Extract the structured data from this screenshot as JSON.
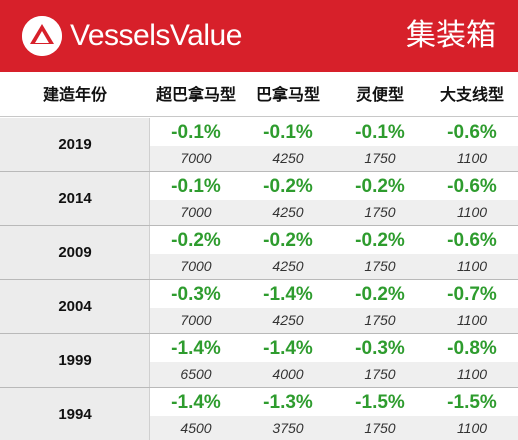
{
  "header": {
    "brand": "VesselsValue",
    "category": "集装箱",
    "logo_icon": "vesselsvalue-logo-icon",
    "brand_color": "#d7202a"
  },
  "table": {
    "columns": [
      "建造年份",
      "超巴拿马型",
      "巴拿马型",
      "灵便型",
      "大支线型"
    ],
    "positive_color": "#2e9c2e",
    "rows": [
      {
        "year": "2019",
        "cells": [
          {
            "pct": "-0.1%",
            "price": "7000"
          },
          {
            "pct": "-0.1%",
            "price": "4250"
          },
          {
            "pct": "-0.1%",
            "price": "1750"
          },
          {
            "pct": "-0.6%",
            "price": "1100"
          }
        ]
      },
      {
        "year": "2014",
        "cells": [
          {
            "pct": "-0.1%",
            "price": "7000"
          },
          {
            "pct": "-0.2%",
            "price": "4250"
          },
          {
            "pct": "-0.2%",
            "price": "1750"
          },
          {
            "pct": "-0.6%",
            "price": "1100"
          }
        ]
      },
      {
        "year": "2009",
        "cells": [
          {
            "pct": "-0.2%",
            "price": "7000"
          },
          {
            "pct": "-0.2%",
            "price": "4250"
          },
          {
            "pct": "-0.2%",
            "price": "1750"
          },
          {
            "pct": "-0.6%",
            "price": "1100"
          }
        ]
      },
      {
        "year": "2004",
        "cells": [
          {
            "pct": "-0.3%",
            "price": "7000"
          },
          {
            "pct": "-1.4%",
            "price": "4250"
          },
          {
            "pct": "-0.2%",
            "price": "1750"
          },
          {
            "pct": "-0.7%",
            "price": "1100"
          }
        ]
      },
      {
        "year": "1999",
        "cells": [
          {
            "pct": "-1.4%",
            "price": "6500"
          },
          {
            "pct": "-1.4%",
            "price": "4000"
          },
          {
            "pct": "-0.3%",
            "price": "1750"
          },
          {
            "pct": "-0.8%",
            "price": "1100"
          }
        ]
      },
      {
        "year": "1994",
        "cells": [
          {
            "pct": "-1.4%",
            "price": "4500"
          },
          {
            "pct": "-1.3%",
            "price": "3750"
          },
          {
            "pct": "-1.5%",
            "price": "1750"
          },
          {
            "pct": "-1.5%",
            "price": "1100"
          }
        ]
      }
    ]
  }
}
